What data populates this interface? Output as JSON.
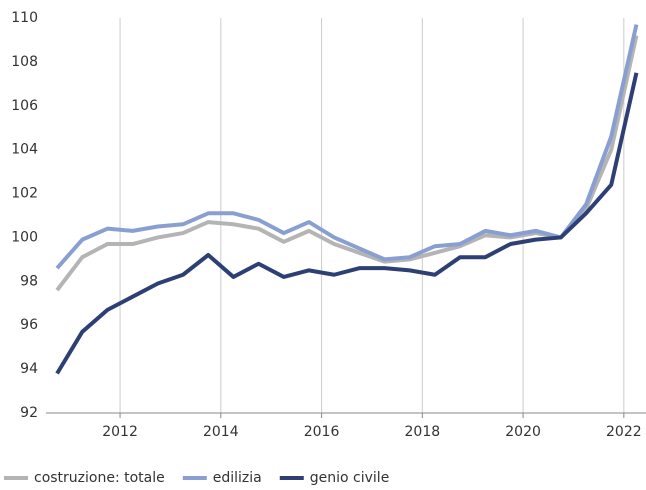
{
  "chart_data": {
    "type": "line",
    "x": [
      2010.75,
      2011.25,
      2011.75,
      2012.25,
      2012.75,
      2013.25,
      2013.75,
      2014.25,
      2014.75,
      2015.25,
      2015.75,
      2016.25,
      2016.75,
      2017.25,
      2017.75,
      2018.25,
      2018.75,
      2019.25,
      2019.75,
      2020.25,
      2020.75,
      2021.25,
      2021.75,
      2022.25
    ],
    "series": [
      {
        "name": "costruzione: totale",
        "color": "#b4b4b4",
        "values": [
          97.6,
          99.1,
          99.7,
          99.7,
          100.0,
          100.2,
          100.7,
          100.6,
          100.4,
          99.8,
          100.3,
          99.7,
          99.3,
          98.9,
          99.0,
          99.3,
          99.6,
          100.1,
          100.0,
          100.2,
          100.0,
          101.3,
          104.0,
          109.2
        ]
      },
      {
        "name": "edilizia",
        "color": "#8a9fd1",
        "values": [
          98.6,
          99.9,
          100.4,
          100.3,
          100.5,
          100.6,
          101.1,
          101.1,
          100.8,
          100.2,
          100.7,
          100.0,
          99.5,
          99.0,
          99.1,
          99.6,
          99.7,
          100.3,
          100.1,
          100.3,
          100.0,
          101.5,
          104.6,
          109.7
        ]
      },
      {
        "name": "genio civile",
        "color": "#2e3f73",
        "values": [
          93.8,
          95.7,
          96.7,
          97.3,
          97.9,
          98.3,
          99.2,
          98.2,
          98.8,
          98.2,
          98.5,
          98.3,
          98.6,
          98.6,
          98.5,
          98.3,
          99.1,
          99.1,
          99.7,
          99.9,
          100.0,
          101.1,
          102.4,
          107.5
        ]
      }
    ],
    "xlim": [
      2010.53,
      2022.44
    ],
    "xticks": [
      2012,
      2014,
      2016,
      2018,
      2020,
      2022
    ],
    "ylim": [
      92,
      110
    ],
    "yticks": [
      92,
      94,
      96,
      98,
      100,
      102,
      104,
      106,
      108,
      110
    ],
    "grid": "x",
    "legend": "bottom-left"
  }
}
